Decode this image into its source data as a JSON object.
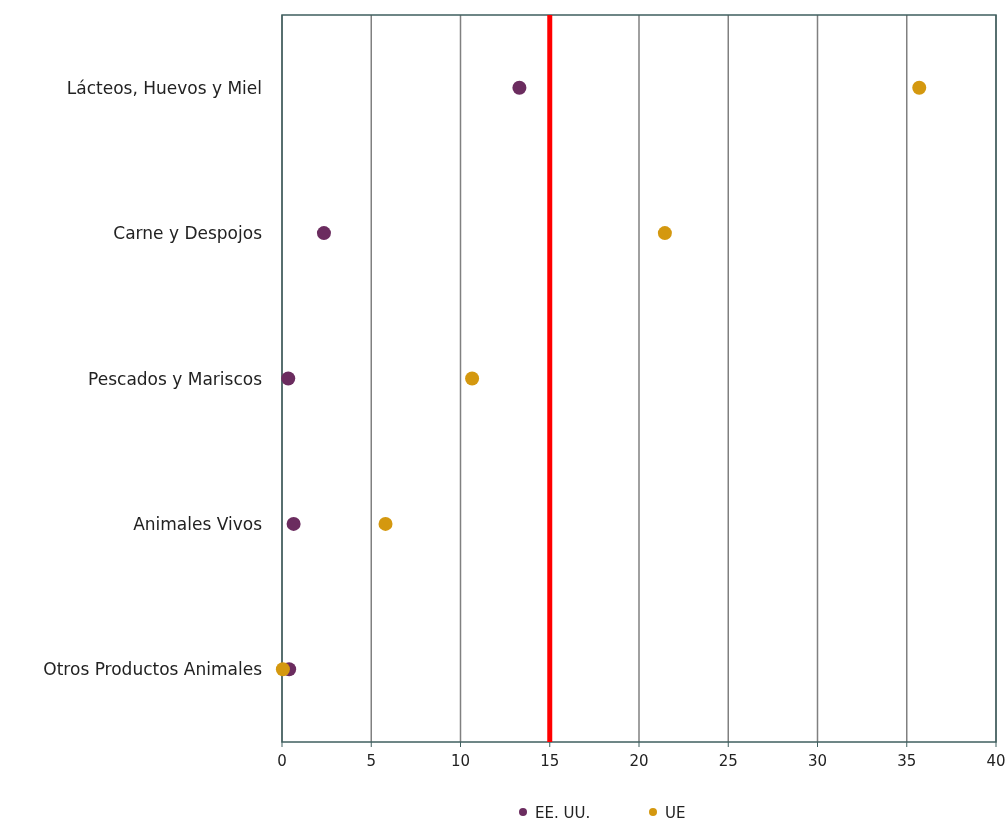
{
  "chart_data": {
    "type": "scatter",
    "orientation": "horizontal",
    "categories": [
      "Lácteos, Huevos y Miel",
      "Carne y Despojos",
      "Pescados y Mariscos",
      "Animales Vivos",
      "Otros Productos Animales"
    ],
    "series": [
      {
        "name": "EE. UU.",
        "color": "#6b2c5f",
        "values": [
          13.3,
          2.35,
          0.35,
          0.65,
          0.4
        ]
      },
      {
        "name": "UE",
        "color": "#d4980f",
        "values": [
          35.7,
          21.45,
          10.65,
          5.8,
          0.05
        ]
      }
    ],
    "xlim": [
      0,
      40
    ],
    "xticks": [
      0,
      5,
      10,
      15,
      20,
      25,
      30,
      35,
      40
    ],
    "ref_lines": [
      {
        "axis": "x",
        "value": 15,
        "color": "#ff0000"
      }
    ],
    "grid": "x",
    "legend": "bottom",
    "marker": "circle"
  }
}
